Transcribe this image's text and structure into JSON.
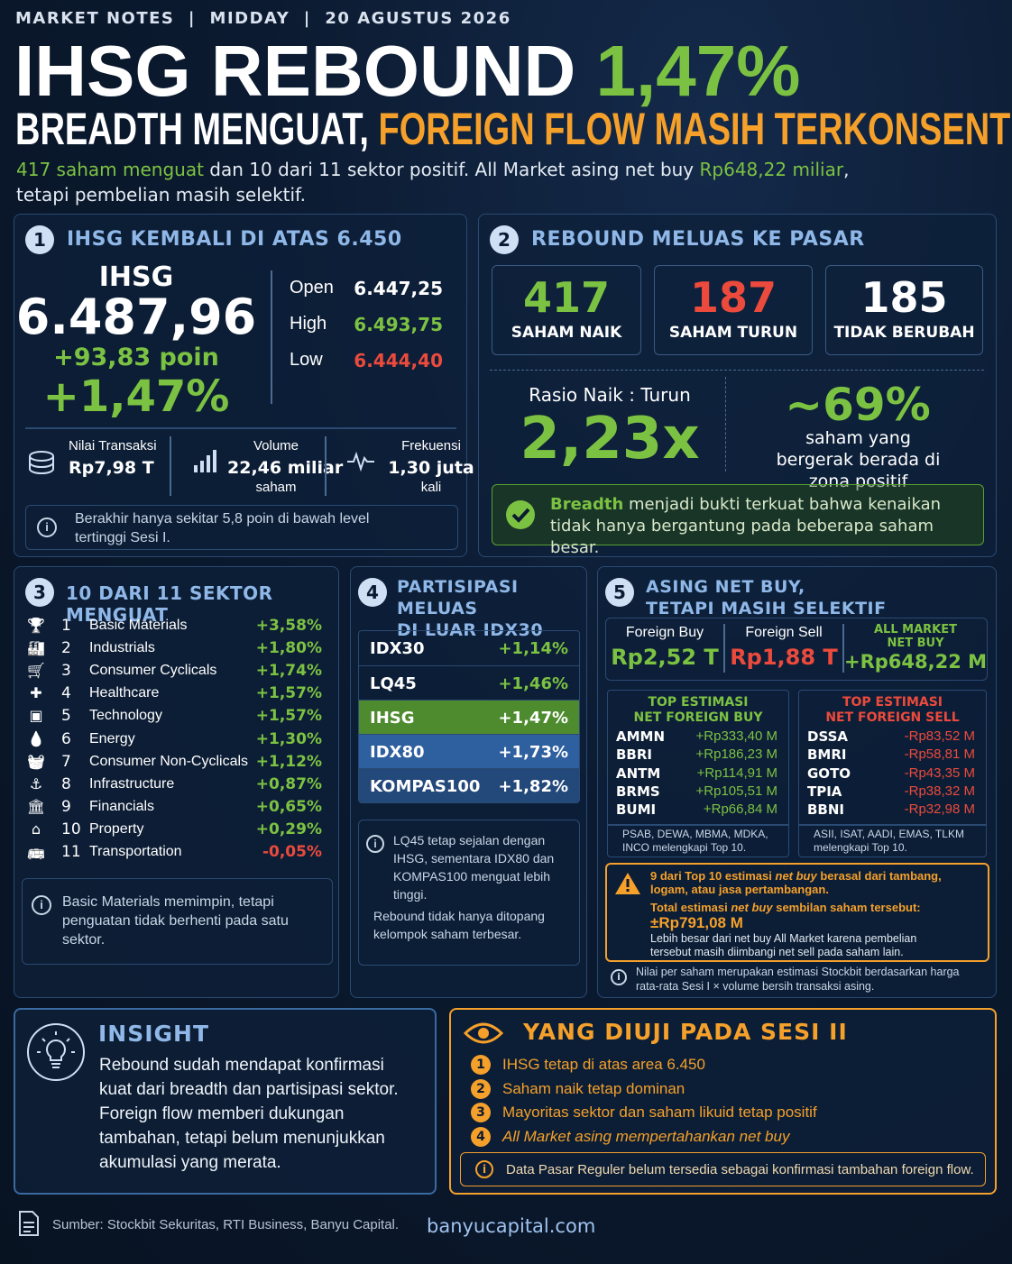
{
  "header": {
    "kicker": "MARKET NOTES  |  MIDDAY  |  20 AGUSTUS 2026",
    "title": "IHSG REBOUND",
    "title_pct": "1,47%",
    "subtitle_a": "BREADTH MENGUAT,",
    "subtitle_b": "FOREIGN FLOW MASIH TERKONSENTRASI",
    "lead": [
      "417 saham menguat",
      "dan 10 dari 11 sektor positif. All Market asing net buy",
      "Rp648,22 miliar",
      ",",
      "tetapi pembelian masih selektif."
    ]
  },
  "panel1": {
    "number": "1",
    "title": "IHSG KEMBALI DI ATAS 6.450",
    "label": "IHSG",
    "value": "6.487,96",
    "change_points": "+93,83 poin",
    "change_pct": "+1,47%",
    "ohl": [
      {
        "label": "Open",
        "value": "6.447,25"
      },
      {
        "label": "High",
        "value": "6.493,75"
      },
      {
        "label": "Low",
        "value": "6.444,40"
      }
    ],
    "stats": [
      {
        "label": "Nilai Transaksi",
        "value": "Rp7,98 T"
      },
      {
        "label": "Volume",
        "value": "22,46 miliar",
        "unit": "saham"
      },
      {
        "label": "Frekuensi",
        "value": "1,30 juta",
        "unit": "kali"
      }
    ],
    "note": "Berakhir hanya sekitar 5,8 poin di bawah level tertinggi Sesi I."
  },
  "panel2": {
    "number": "2",
    "title": "REBOUND MELUAS KE PASAR",
    "counts": [
      {
        "value": "417",
        "label": "SAHAM NAIK"
      },
      {
        "value": "187",
        "label": "SAHAM TURUN"
      },
      {
        "value": "185",
        "label": "TIDAK BERUBAH"
      }
    ],
    "ratio_label": "Rasio Naik : Turun",
    "ratio": "2,23x",
    "share": "~69%",
    "share_label": "saham yang bergerak berada di zona positif",
    "breadth": [
      "Breadth",
      "menjadi bukti terkuat bahwa kenaikan tidak hanya bergantung pada beberapa saham besar."
    ]
  },
  "panel3": {
    "number": "3",
    "title": "10 DARI 11 SEKTOR MENGUAT",
    "sectors": [
      {
        "rank": "1",
        "name": "Basic Materials",
        "change": "+3,58%"
      },
      {
        "rank": "2",
        "name": "Industrials",
        "change": "+1,80%"
      },
      {
        "rank": "3",
        "name": "Consumer Cyclicals",
        "change": "+1,74%"
      },
      {
        "rank": "4",
        "name": "Healthcare",
        "change": "+1,57%"
      },
      {
        "rank": "5",
        "name": "Technology",
        "change": "+1,57%"
      },
      {
        "rank": "6",
        "name": "Energy",
        "change": "+1,30%"
      },
      {
        "rank": "7",
        "name": "Consumer Non-Cyclicals",
        "change": "+1,12%"
      },
      {
        "rank": "8",
        "name": "Infrastructure",
        "change": "+0,87%"
      },
      {
        "rank": "9",
        "name": "Financials",
        "change": "+0,65%"
      },
      {
        "rank": "10",
        "name": "Property",
        "change": "+0,29%"
      },
      {
        "rank": "11",
        "name": "Transportation",
        "change": "-0,05%"
      }
    ],
    "note": "Basic Materials memimpin, tetapi penguatan tidak berhenti pada satu sektor."
  },
  "panel4": {
    "number": "4",
    "title": [
      "PARTISIPASI MELUAS",
      "DI LUAR IDX30"
    ],
    "indices": [
      {
        "name": "IDX30",
        "change": "+1,14%"
      },
      {
        "name": "LQ45",
        "change": "+1,46%"
      },
      {
        "name": "IHSG",
        "change": "+1,47%"
      },
      {
        "name": "IDX80",
        "change": "+1,73%"
      },
      {
        "name": "KOMPAS100",
        "change": "+1,82%"
      }
    ],
    "notes": [
      "LQ45 tetap sejalan dengan IHSG, sementara IDX80 dan KOMPAS100 menguat lebih tinggi.",
      "Rebound tidak hanya ditopang kelompok saham terbesar."
    ]
  },
  "panel5": {
    "number": "5",
    "title": [
      "ASING NET BUY,",
      "TETAPI MASIH SELEKTIF"
    ],
    "flows": [
      {
        "label": "Foreign Buy",
        "value": "Rp2,52 T"
      },
      {
        "label": "Foreign Sell",
        "value": "Rp1,88 T"
      },
      {
        "label": "ALL MARKET NET BUY",
        "value": "+Rp648,22 M"
      }
    ],
    "top_buy": {
      "title": [
        "TOP ESTIMASI",
        "NET FOREIGN BUY"
      ],
      "rows": [
        [
          "AMMN",
          "+Rp333,40 M"
        ],
        [
          "BBRI",
          "+Rp186,23 M"
        ],
        [
          "ANTM",
          "+Rp114,91 M"
        ],
        [
          "BRMS",
          "+Rp105,51 M"
        ],
        [
          "BUMI",
          "+Rp66,84 M"
        ]
      ],
      "note": "PSAB, DEWA, MBMA, MDKA, INCO melengkapi Top 10."
    },
    "top_sell": {
      "title": [
        "TOP ESTIMASI",
        "NET FOREIGN SELL"
      ],
      "rows": [
        [
          "DSSA",
          "-Rp83,52 M"
        ],
        [
          "BMRI",
          "-Rp58,81 M"
        ],
        [
          "GOTO",
          "-Rp43,35 M"
        ],
        [
          "TPIA",
          "-Rp38,32 M"
        ],
        [
          "BBNI",
          "-Rp32,98 M"
        ]
      ],
      "note": "ASII, ISAT, AADI, EMAS, TLKM melengkapi Top 10."
    },
    "warning": [
      "9 dari Top 10 estimasi",
      "net buy",
      "berasal dari tambang, logam, atau jasa pertambangan."
    ],
    "total_label": [
      "Total estimasi",
      "net buy",
      "sembilan saham tersebut:"
    ],
    "total": "±Rp791,08 M",
    "total_note": "Lebih besar dari net buy All Market karena pembelian tersebut masih diimbangi net sell pada saham lain.",
    "footnote": "Nilai per saham merupakan estimasi Stockbit berdasarkan harga rata-rata Sesi I × volume bersih transaksi asing."
  },
  "insight": {
    "title": "INSIGHT",
    "text": "Rebound sudah mendapat konfirmasi kuat dari breadth dan partisipasi sektor. Foreign flow memberi dukungan tambahan, tetapi belum menunjukkan akumulasi yang merata."
  },
  "test": {
    "title": "YANG DIUJI PADA SESI II",
    "items": [
      {
        "n": "1",
        "text": "IHSG tetap di atas area 6.450"
      },
      {
        "n": "2",
        "text": "Saham naik tetap dominan"
      },
      {
        "n": "3",
        "text": "Mayoritas sektor dan saham likuid tetap positif"
      },
      {
        "n": "4",
        "text": "All Market asing mempertahankan net buy"
      }
    ],
    "note": "Data Pasar Reguler belum tersedia sebagai konfirmasi tambahan foreign flow."
  },
  "footer": {
    "source": "Sumber: Stockbit Sekuritas, RTI Business, Banyu Capital.",
    "site": "banyucapital.com"
  }
}
